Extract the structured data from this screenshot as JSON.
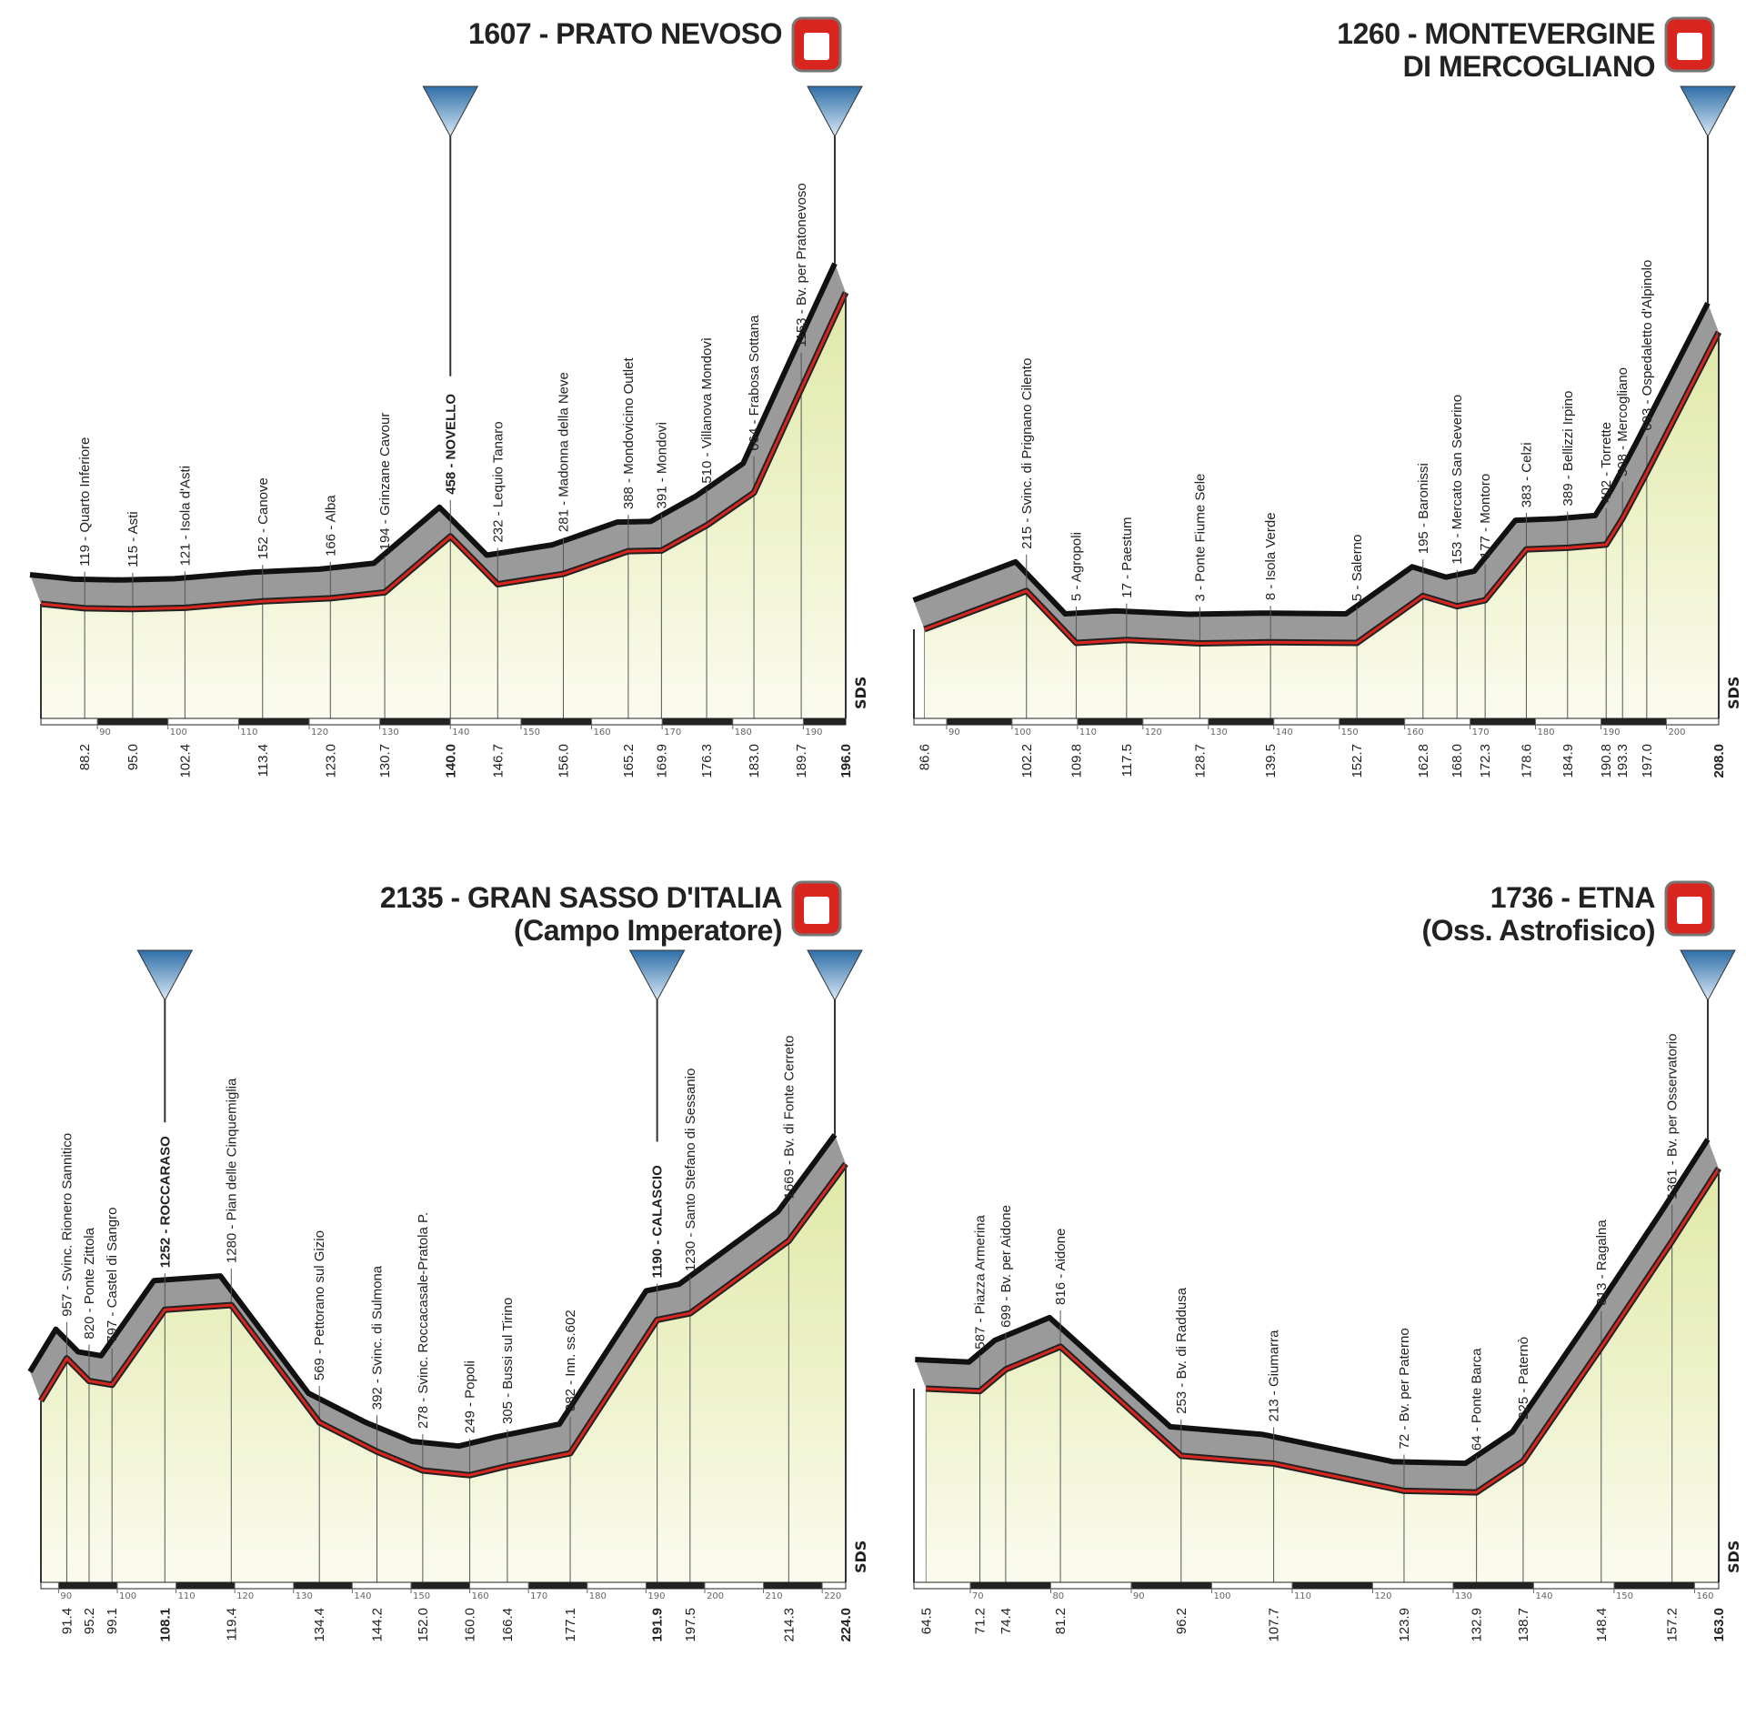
{
  "chart_data": [
    {
      "type": "area",
      "title": "1607 - PRATO NEVOSO",
      "brand": "SDS",
      "x": [
        82,
        88.2,
        95.0,
        102.4,
        113.4,
        123.0,
        130.7,
        140.0,
        146.7,
        156.0,
        165.2,
        169.9,
        176.3,
        183.0,
        189.7,
        196.0
      ],
      "x_labels": [
        null,
        "88.2",
        "95.0",
        "102.4",
        "113.4",
        "123.0",
        "130.7",
        "140.0",
        "146.7",
        "156.0",
        "165.2",
        "169.9",
        "176.3",
        "183.0",
        "189.7",
        "196.0"
      ],
      "values": [
        140,
        119,
        115,
        121,
        152,
        166,
        194,
        458,
        232,
        281,
        388,
        391,
        510,
        664,
        1153,
        1607
      ],
      "value_labels": [
        null,
        "119 - Quarto Inferiore",
        "115 - Asti",
        "121 - Isola d'Asti",
        "152 - Canove",
        "166 - Alba",
        "194 - Grinzane Cavour",
        "458 - NOVELLO",
        "232 - Lequio Tanaro",
        "281 - Madonna della Neve",
        "388 - Mondovicino Outlet",
        "391 - Mondovì",
        "510 - Villanova Mondovì",
        "664 - Frabosa Sottana",
        "1153 - Bv. per Pratonevoso",
        null
      ],
      "xlim": [
        82,
        196
      ],
      "ylim": [
        -400,
        1700
      ],
      "xticks": [
        90,
        100,
        110,
        120,
        130,
        140,
        150,
        160,
        170,
        180,
        190
      ]
    },
    {
      "type": "area",
      "title": "1260 - MONTEVERGINE",
      "subtitle": "DI MERCOGLIANO",
      "brand": "SDS",
      "x": [
        86.6,
        102.2,
        109.8,
        117.5,
        128.7,
        139.5,
        152.7,
        162.8,
        168.0,
        172.3,
        178.6,
        184.9,
        190.8,
        193.3,
        197.0,
        208.0
      ],
      "x_labels": [
        "86.6",
        "102.2",
        "109.8",
        "117.5",
        "128.7",
        "139.5",
        "152.7",
        "162.8",
        "168.0",
        "172.3",
        "178.6",
        "184.9",
        "190.8",
        "193.3",
        "197.0",
        "208.0"
      ],
      "values": [
        60,
        215,
        5,
        17,
        3,
        8,
        5,
        195,
        153,
        177,
        383,
        389,
        402,
        508,
        693,
        1260
      ],
      "value_labels": [
        null,
        "215 - Svinc. di Prignano Cilento",
        "5 - Agropoli",
        "17 - Paestum",
        "3 - Ponte Fiume Sele",
        "8 - Isola Verde",
        "5 - Salerno",
        "195 - Baronissi",
        "153 - Mercato San Severino",
        "177 - Montoro",
        "383 - Celzi",
        "389 - Bellizzi Irpino",
        "402 - Torrette",
        "508 - Mercogliano",
        "693 - Ospedaletto d'Alpinolo",
        null
      ],
      "xlim": [
        85,
        208
      ],
      "ylim": [
        -300,
        1500
      ],
      "xticks": [
        90,
        100,
        110,
        120,
        130,
        140,
        150,
        160,
        170,
        180,
        190,
        200
      ]
    },
    {
      "type": "area",
      "title": "2135 - GRAN SASSO D'ITALIA",
      "subtitle": "(Campo Imperatore)",
      "brand": "SDS",
      "x": [
        87,
        91.4,
        95.2,
        99.1,
        108.1,
        119.4,
        134.4,
        144.2,
        152.0,
        160.0,
        166.4,
        177.1,
        191.9,
        197.5,
        214.3,
        224.0
      ],
      "x_labels": [
        null,
        "91.4",
        "95.2",
        "99.1",
        "108.1",
        "119.4",
        "134.4",
        "144.2",
        "152.0",
        "160.0",
        "166.4",
        "177.1",
        "191.9",
        "197.5",
        "214.3",
        "224.0"
      ],
      "values": [
        700,
        957,
        820,
        797,
        1252,
        1280,
        569,
        392,
        278,
        249,
        305,
        382,
        1190,
        1230,
        1669,
        2135
      ],
      "value_labels": [
        null,
        "957 - Svinc. Rionero Sannitico",
        "820 - Ponte Zittola",
        "797 - Castel di Sangro",
        "1252 - ROCCARASO",
        "1280 - Pian delle Cinquemiglia",
        "569 - Pettorano sul Gizio",
        "392 - Svinc. di Sulmona",
        "278 - Svinc. Roccacasale-Pratola P.",
        "249 - Popoli",
        "305 - Bussi sul Tirino",
        "382 - Inn. ss.602",
        "1190 - CALASCIO",
        "1230 - Santo Stefano di Sessanio",
        "1669 - Bv. di Fonte Cerreto",
        null
      ],
      "xlim": [
        87,
        224
      ],
      "ylim": [
        -400,
        2300
      ],
      "xticks": [
        90,
        100,
        110,
        120,
        130,
        140,
        150,
        160,
        170,
        180,
        190,
        200,
        210,
        220
      ]
    },
    {
      "type": "area",
      "title": "1736 - ETNA",
      "subtitle": "(Oss. Astrofisico)",
      "brand": "SDS",
      "x": [
        64.5,
        71.2,
        74.4,
        81.2,
        96.2,
        107.7,
        123.9,
        132.9,
        138.7,
        148.4,
        157.2,
        163.0
      ],
      "x_labels": [
        "64.5",
        "71.2",
        "74.4",
        "81.2",
        "96.2",
        "107.7",
        "123.9",
        "132.9",
        "138.7",
        "148.4",
        "157.2",
        "163.0"
      ],
      "values": [
        600,
        587,
        699,
        816,
        253,
        213,
        72,
        64,
        225,
        813,
        1361,
        1736
      ],
      "value_labels": [
        null,
        "587 - Piazza Armerina",
        "699 - Bv. per Aidone",
        "816 - Aidone",
        "253 - Bv. di Raddusa",
        "213 - Giumarra",
        "72 - Bv. per Paterno",
        "64 - Ponte Barca",
        "225 - Paternò",
        "813 - Ragalna",
        "1361 - Bv. per Osservatorio",
        null
      ],
      "xlim": [
        63,
        163
      ],
      "ylim": [
        -400,
        1900
      ],
      "xticks": [
        70,
        80,
        90,
        100,
        110,
        120,
        130,
        140,
        150,
        160
      ]
    }
  ]
}
